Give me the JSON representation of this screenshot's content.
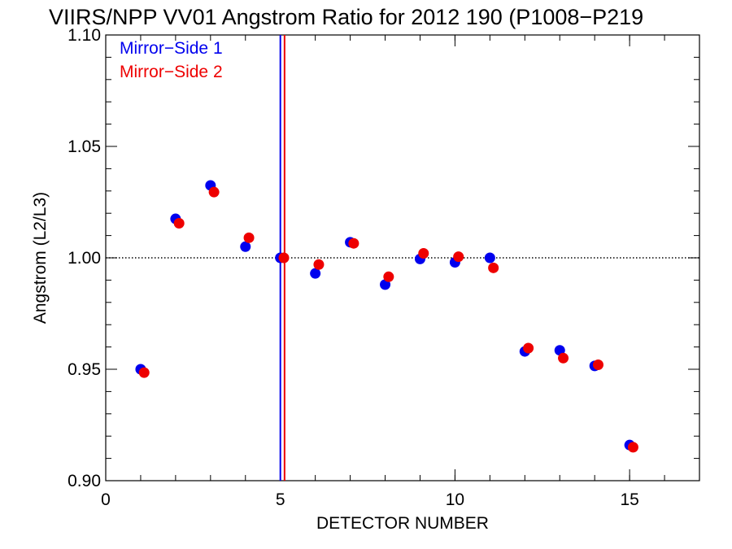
{
  "chart_data": {
    "type": "scatter",
    "title": "VIIRS/NPP VV01 Angstrom Ratio for 2012 190 (P1008−P219",
    "xlabel": "DETECTOR NUMBER",
    "ylabel": "Angstrom (L2/L3)",
    "xlim": [
      0,
      17
    ],
    "ylim": [
      0.9,
      1.1
    ],
    "x_ticks": [
      {
        "value": 0,
        "label": "0"
      },
      {
        "value": 5,
        "label": "5"
      },
      {
        "value": 10,
        "label": "10"
      },
      {
        "value": 15,
        "label": "15"
      }
    ],
    "y_ticks": [
      {
        "value": 0.9,
        "label": "0.90"
      },
      {
        "value": 0.95,
        "label": "0.95"
      },
      {
        "value": 1.0,
        "label": "1.00"
      },
      {
        "value": 1.05,
        "label": "1.05"
      },
      {
        "value": 1.1,
        "label": "1.10"
      }
    ],
    "x_minor_step": 1,
    "y_minor_step": 0.01,
    "reference_line": {
      "y": 1.0,
      "style": "dotted"
    },
    "vertical_lines": [
      {
        "x": 5.0,
        "color": "#0000ee"
      },
      {
        "x": 5.12,
        "color": "#ee0000"
      }
    ],
    "legend_position": "top-left",
    "series": [
      {
        "name": "Mirror−Side 1",
        "color": "#0000ee",
        "x": [
          1,
          2,
          3,
          4,
          5,
          6,
          7,
          8,
          9,
          10,
          11,
          12,
          13,
          14,
          15
        ],
        "y": [
          0.95,
          1.0175,
          1.0325,
          1.005,
          1.0,
          0.993,
          1.007,
          0.988,
          0.9995,
          0.998,
          1.0,
          0.958,
          0.9585,
          0.9515,
          0.916
        ]
      },
      {
        "name": "Mirror−Side 2",
        "color": "#ee0000",
        "x": [
          1.1,
          2.1,
          3.1,
          4.1,
          5.1,
          6.1,
          7.1,
          8.1,
          9.1,
          10.1,
          11.1,
          12.1,
          13.1,
          14.1,
          15.1
        ],
        "y": [
          0.9485,
          1.0155,
          1.0295,
          1.009,
          1.0,
          0.997,
          1.0065,
          0.9915,
          1.002,
          1.0005,
          0.9955,
          0.9595,
          0.955,
          0.952,
          0.915
        ]
      }
    ]
  }
}
